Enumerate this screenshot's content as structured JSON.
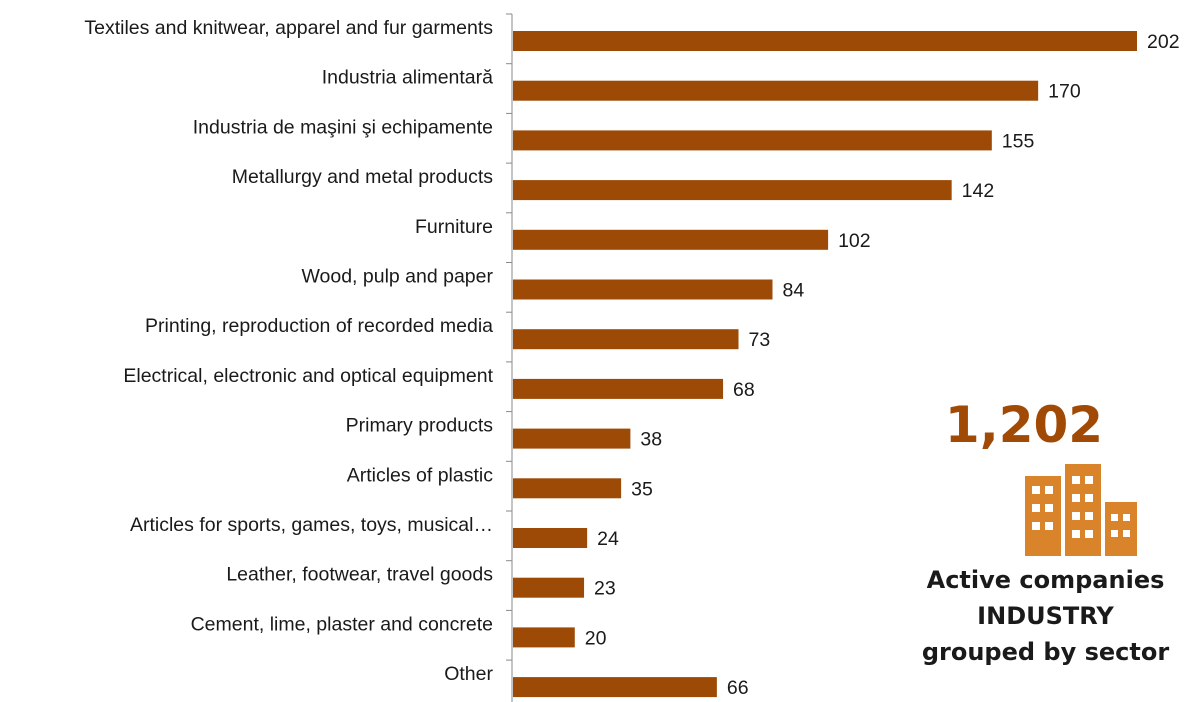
{
  "chart_data": {
    "type": "bar",
    "orientation": "horizontal",
    "categories": [
      "Textiles and knitwear, apparel and fur garments",
      "Industria alimentară",
      "Industria de maşini şi echipamente",
      "Metallurgy and metal products",
      "Furniture",
      "Wood, pulp and paper",
      "Printing, reproduction of recorded media",
      "Electrical, electronic and optical equipment",
      "Primary products",
      "Articles of plastic",
      "Articles for sports, games, toys, musical…",
      "Leather, footwear, travel goods",
      "Cement, lime, plaster and concrete",
      "Other"
    ],
    "values": [
      202,
      170,
      155,
      142,
      102,
      84,
      73,
      68,
      38,
      35,
      24,
      23,
      20,
      66
    ],
    "bar_color": "#9c4a05",
    "xlim": [
      0,
      202
    ],
    "grid": false,
    "legend": "none"
  },
  "callout": {
    "total": "1,202",
    "icon": "building-icon",
    "caption_line1": "Active companies",
    "caption_line2": "INDUSTRY",
    "caption_line3": "grouped by sector",
    "accent_color": "#a04a05"
  }
}
